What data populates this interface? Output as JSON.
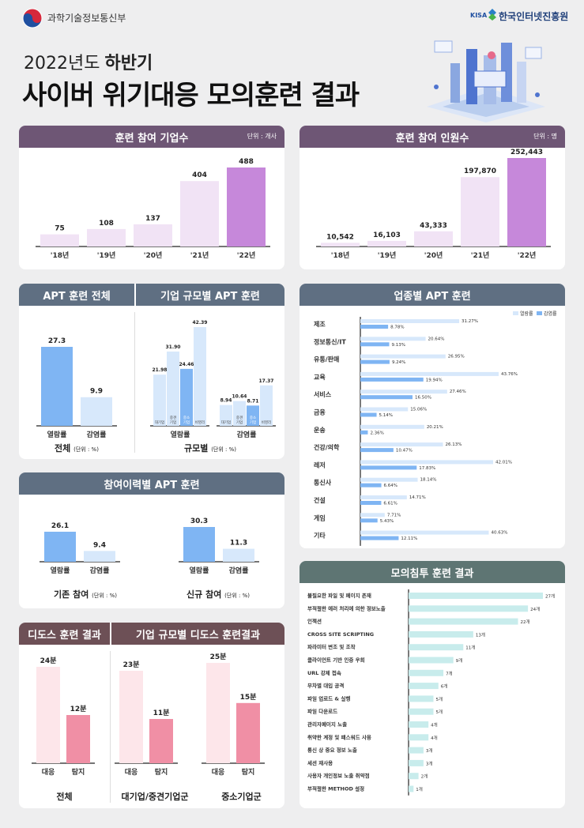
{
  "header": {
    "ministry": "과학기술정보통신부",
    "kisa_en": "KISA",
    "kisa_ko": "한국인터넷진흥원",
    "title_year": "2022년도",
    "title_half": "하반기",
    "title_main": "사이버 위기대응 모의훈련 결과"
  },
  "colors": {
    "purple_header": "#6e5675",
    "slate_header": "#5f6f82",
    "teal_header": "#5e7573",
    "maroon_header": "#6d5056",
    "light_purple": "#f1e3f5",
    "purple": "#c688da",
    "blue": "#7fb5f3",
    "light_blue": "#d7e8fb",
    "pink": "#f08fa5",
    "light_pink": "#fde6ea",
    "teal_light": "#c8ecec"
  },
  "cards": {
    "companies": {
      "title": "훈련 참여 기업수",
      "unit": "단위 : 개사"
    },
    "people": {
      "title": "훈련 참여 인원수",
      "unit": "단위 : 명"
    },
    "apt_total": {
      "title": "APT 훈련 전체",
      "caption": "전체",
      "caption_unit": "(단위 : %)"
    },
    "apt_size": {
      "title": "기업 규모별 APT 훈련",
      "caption": "규모별",
      "caption_unit": "(단위 : %)"
    },
    "apt_industry": {
      "title": "업종별 APT 훈련"
    },
    "apt_history": {
      "title": "참여이력별 APT 훈련",
      "caption_a": "기존 참여",
      "caption_b": "신규 참여",
      "caption_unit": "(단위 : %)"
    },
    "ddos_total": {
      "title": "디도스 훈련 결과",
      "caption": "전체"
    },
    "ddos_size": {
      "title": "기업 규모별 디도스 훈련결과",
      "caption_a": "대기업/중견기업군",
      "caption_b": "중소기업군"
    },
    "pentest": {
      "title": "모의침투 훈련 결과"
    }
  },
  "chart_data": [
    {
      "id": "companies",
      "type": "bar",
      "categories": [
        "'18년",
        "'19년",
        "'20년",
        "'21년",
        "'22년"
      ],
      "values": [
        75,
        108,
        137,
        404,
        488
      ],
      "labels": [
        "75",
        "108",
        "137",
        "404",
        "488"
      ]
    },
    {
      "id": "people",
      "type": "bar",
      "categories": [
        "'18년",
        "'19년",
        "'20년",
        "'21년",
        "'22년"
      ],
      "values": [
        10542,
        16103,
        43333,
        197870,
        252443
      ],
      "labels": [
        "10,542",
        "16,103",
        "43,333",
        "197,870",
        "252,443"
      ]
    },
    {
      "id": "apt_total",
      "type": "bar",
      "categories": [
        "열람률",
        "감염률"
      ],
      "values": [
        27.3,
        9.9
      ],
      "labels": [
        "27.3",
        "9.9"
      ]
    },
    {
      "id": "apt_size",
      "type": "bar",
      "groups": [
        "열람률",
        "감염률"
      ],
      "subcategories": [
        "대기업",
        "중견 기업",
        "중소 기업",
        "비영리"
      ],
      "series": [
        {
          "group": "열람률",
          "values": [
            21.98,
            31.9,
            24.46,
            42.39
          ],
          "labels": [
            "21.98",
            "31.90",
            "24.46",
            "42.39"
          ]
        },
        {
          "group": "감염률",
          "values": [
            8.94,
            10.64,
            8.71,
            17.37
          ],
          "labels": [
            "8.94",
            "10.64",
            "8.71",
            "17.37"
          ]
        }
      ]
    },
    {
      "id": "apt_industry",
      "type": "bar",
      "orientation": "horizontal",
      "legend": [
        "열람률",
        "감염률"
      ],
      "categories": [
        "제조",
        "정보통신/IT",
        "유통/판매",
        "교육",
        "서비스",
        "금융",
        "운송",
        "건강/의학",
        "레저",
        "통신사",
        "건설",
        "게임",
        "기타"
      ],
      "series": [
        {
          "name": "열람률",
          "values": [
            31.27,
            20.64,
            26.95,
            43.76,
            27.46,
            15.06,
            20.21,
            26.13,
            42.01,
            18.14,
            14.71,
            7.71,
            40.63
          ],
          "labels": [
            "31.27%",
            "20.64%",
            "26.95%",
            "43.76%",
            "27.46%",
            "15.06%",
            "20.21%",
            "26.13%",
            "42.01%",
            "18.14%",
            "14.71%",
            "7.71%",
            "40.63%"
          ]
        },
        {
          "name": "감염률",
          "values": [
            8.78,
            9.13,
            9.24,
            19.94,
            16.5,
            5.14,
            2.36,
            10.47,
            17.83,
            6.64,
            6.61,
            5.43,
            12.11
          ],
          "labels": [
            "8.78%",
            "9.13%",
            "9.24%",
            "19.94%",
            "16.50%",
            "5.14%",
            "2.36%",
            "10.47%",
            "17.83%",
            "6.64%",
            "6.61%",
            "5.43%",
            "12.11%"
          ]
        }
      ]
    },
    {
      "id": "apt_history_existing",
      "type": "bar",
      "categories": [
        "열람률",
        "감염률"
      ],
      "values": [
        26.1,
        9.4
      ],
      "labels": [
        "26.1",
        "9.4"
      ]
    },
    {
      "id": "apt_history_new",
      "type": "bar",
      "categories": [
        "열람률",
        "감염률"
      ],
      "values": [
        30.3,
        11.3
      ],
      "labels": [
        "30.3",
        "11.3"
      ]
    },
    {
      "id": "ddos_total",
      "type": "bar",
      "categories": [
        "대응",
        "탐지"
      ],
      "values": [
        24,
        12
      ],
      "labels": [
        "24분",
        "12분"
      ]
    },
    {
      "id": "ddos_large",
      "type": "bar",
      "categories": [
        "대응",
        "탐지"
      ],
      "values": [
        23,
        11
      ],
      "labels": [
        "23분",
        "11분"
      ]
    },
    {
      "id": "ddos_small",
      "type": "bar",
      "categories": [
        "대응",
        "탐지"
      ],
      "values": [
        25,
        15
      ],
      "labels": [
        "25분",
        "15분"
      ]
    },
    {
      "id": "pentest",
      "type": "bar",
      "orientation": "horizontal",
      "categories": [
        "불필요한 파일 및 페이지 존재",
        "부적절한 에러 처리에 의한 정보노출",
        "인젝션",
        "CROSS SITE SCRIPTING",
        "파라미터 변조 및 조작",
        "클라이언트 기반 인증 우회",
        "URL 강제 접속",
        "무차별 대입 공격",
        "파일 업로드 & 실행",
        "파일 다운로드",
        "관리자페이지 노출",
        "취약한 계정 및 패스워드 사용",
        "통신 상 중요 정보 노출",
        "세션 재사용",
        "사용자 개인정보 노출 취약점",
        "부적절한 METHOD 설정"
      ],
      "values": [
        27,
        24,
        22,
        13,
        11,
        9,
        7,
        6,
        5,
        5,
        4,
        4,
        3,
        3,
        2,
        1
      ],
      "labels": [
        "27개",
        "24개",
        "22개",
        "13개",
        "11개",
        "9개",
        "7개",
        "6개",
        "5개",
        "5개",
        "4개",
        "4개",
        "3개",
        "3개",
        "2개",
        "1개"
      ]
    }
  ]
}
